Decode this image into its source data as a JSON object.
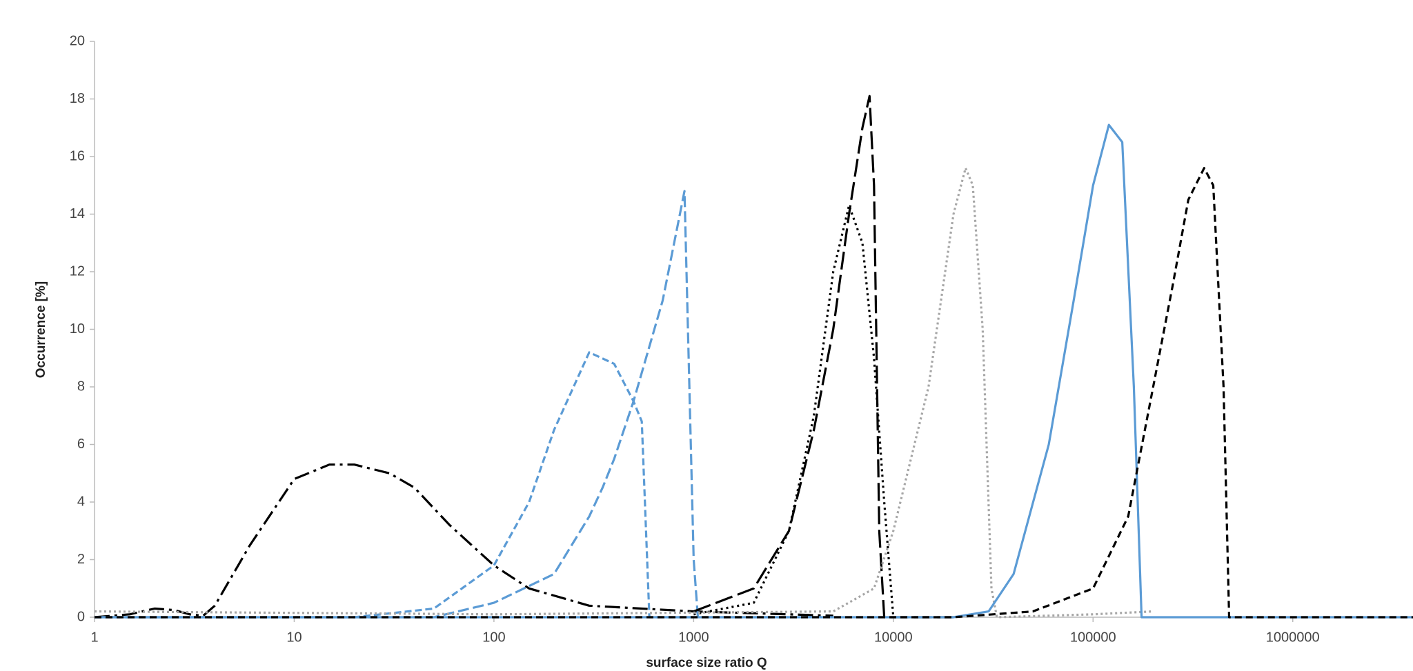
{
  "chart_data": {
    "type": "line",
    "x_label": "surface size ratio Q",
    "y_label": "Occurrence [%]",
    "x_log": true,
    "grid": false,
    "xlim": [
      1,
      4000000
    ],
    "ylim": [
      0,
      20
    ],
    "xticks": [
      1,
      10,
      100,
      1000,
      10000,
      100000,
      1000000
    ],
    "yticks": [
      0,
      2,
      4,
      6,
      8,
      10,
      12,
      14,
      16,
      18,
      20
    ],
    "series": [
      {
        "color": "#000000",
        "dash": "22,7,4,7",
        "x": [
          1,
          1.5,
          2,
          2.5,
          3,
          3.5,
          4,
          6,
          10,
          15,
          20,
          30,
          40,
          60,
          100,
          150,
          300,
          1000,
          3000,
          5000
        ],
        "values": [
          0,
          0.1,
          0.3,
          0.25,
          0.1,
          0.05,
          0.4,
          2.5,
          4.8,
          5.3,
          5.3,
          5,
          4.5,
          3.2,
          1.8,
          1,
          0.4,
          0.2,
          0.1,
          0.05
        ]
      },
      {
        "color": "#5b9bd5",
        "dash": "10,5",
        "x": [
          1,
          20,
          50,
          100,
          150,
          200,
          300,
          400,
          500,
          550,
          600,
          1000
        ],
        "values": [
          0,
          0,
          0.3,
          1.8,
          4,
          6.5,
          9.2,
          8.8,
          7.5,
          6.8,
          0,
          0
        ]
      },
      {
        "color": "#5b9bd5",
        "dash": "16,6",
        "x": [
          1,
          50,
          100,
          200,
          300,
          350,
          400,
          500,
          700,
          900,
          1000,
          1050,
          3000
        ],
        "values": [
          0,
          0,
          0.5,
          1.5,
          3.5,
          4.5,
          5.5,
          7.5,
          11,
          14.8,
          2,
          0,
          0
        ]
      },
      {
        "color": "#000000",
        "dash": "3,5",
        "x": [
          1000,
          2000,
          3000,
          4000,
          5000,
          6000,
          7000,
          8000,
          9000,
          10000
        ],
        "values": [
          0.1,
          0.5,
          3,
          7,
          12,
          14.3,
          13,
          9,
          4,
          0
        ]
      },
      {
        "color": "#000000",
        "dash": "26,8",
        "x": [
          1000,
          2000,
          3000,
          4000,
          5000,
          6000,
          7000,
          7600,
          8000,
          8500,
          9000,
          20000
        ],
        "values": [
          0.2,
          1,
          3,
          6.5,
          10,
          14,
          17,
          18.1,
          15,
          3,
          0,
          0
        ]
      },
      {
        "color": "#a6a6a6",
        "dash": "3,4",
        "x": [
          1,
          100,
          5000,
          8000,
          10000,
          15000,
          20000,
          23000,
          25000,
          28000,
          31000,
          33000,
          100000,
          200000
        ],
        "values": [
          0.2,
          0.1,
          0.2,
          1,
          3,
          8,
          14,
          15.6,
          15,
          10,
          1,
          0,
          0.1,
          0.2
        ]
      },
      {
        "color": "#5b9bd5",
        "dash": "none",
        "x": [
          1,
          20000,
          30000,
          40000,
          60000,
          80000,
          100000,
          120000,
          140000,
          160000,
          175000,
          4000000
        ],
        "values": [
          0,
          0,
          0.2,
          1.5,
          6,
          11,
          15,
          17.1,
          16.5,
          8,
          0,
          0
        ]
      },
      {
        "color": "#000000",
        "dash": "10,6",
        "x": [
          1,
          20000,
          50000,
          100000,
          150000,
          200000,
          250000,
          300000,
          360000,
          400000,
          450000,
          480000,
          4000000
        ],
        "values": [
          0,
          0,
          0.2,
          1,
          3.5,
          8,
          11.5,
          14.5,
          15.6,
          15,
          8,
          0,
          0
        ]
      }
    ]
  }
}
